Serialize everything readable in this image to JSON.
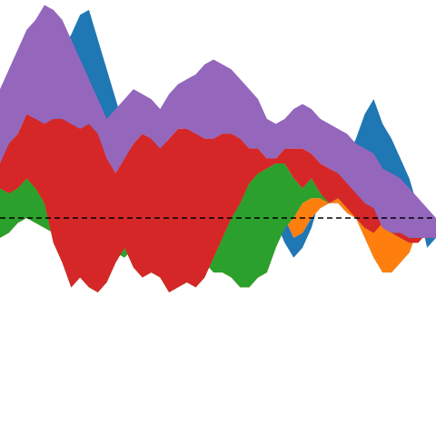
{
  "chart_data": {
    "type": "area",
    "stacked": true,
    "baseline": "centered",
    "grid": false,
    "legend": "none",
    "x": [
      0,
      1,
      2,
      3,
      4,
      5,
      6,
      7,
      8,
      9,
      10,
      11,
      12,
      13,
      14,
      15,
      16,
      17,
      18,
      19,
      20,
      21,
      22,
      23,
      24,
      25,
      26,
      27,
      28,
      29,
      30,
      31,
      32,
      33,
      34,
      35,
      36,
      37,
      38,
      39,
      40,
      41,
      42,
      43,
      44,
      45,
      46,
      47,
      48,
      49
    ],
    "reference_line": {
      "y": 0,
      "style": "dashed",
      "color": "#000000"
    },
    "series": [
      {
        "color": "#1f77b4",
        "lower": [
          115,
          95,
          70,
          80,
          110,
          150,
          165,
          170,
          185,
          205,
          210,
          180,
          150,
          120,
          90,
          55,
          60,
          100,
          95,
          70,
          30,
          60,
          70,
          80,
          60,
          55,
          40,
          25,
          20,
          10,
          0,
          -5,
          -25,
          -40,
          -30,
          -10,
          20,
          40,
          50,
          60,
          80,
          105,
          120,
          95,
          80,
          60,
          40,
          10,
          -30,
          -20
        ]
      },
      {
        "color": "#ff7f0e",
        "lower": [
          40,
          45,
          55,
          65,
          65,
          45,
          40,
          55,
          45,
          40,
          40,
          55,
          70,
          85,
          70,
          50,
          35,
          30,
          40,
          60,
          80,
          105,
          120,
          145,
          155,
          150,
          140,
          130,
          100,
          70,
          35,
          20,
          0,
          -20,
          -15,
          0,
          10,
          15,
          15,
          5,
          0,
          -20,
          -40,
          -55,
          -55,
          -45,
          -35,
          -10,
          -5,
          0
        ]
      },
      {
        "color": "#2ca02c",
        "lower": [
          -20,
          -15,
          -5,
          0,
          -5,
          -10,
          -15,
          -15,
          -15,
          -15,
          -15,
          -25,
          -35,
          -35,
          -40,
          -30,
          -20,
          -15,
          -15,
          -5,
          -5,
          -25,
          -30,
          -45,
          -55,
          -55,
          -60,
          -70,
          -70,
          -60,
          -55,
          -30,
          -10,
          0,
          15,
          20,
          20,
          15,
          25,
          25,
          15,
          10,
          0,
          -5,
          -5,
          0,
          0,
          5,
          0,
          0
        ]
      },
      {
        "color": "#d62728",
        "lower": [
          30,
          25,
          30,
          40,
          30,
          15,
          -25,
          -45,
          -70,
          -60,
          -70,
          -75,
          -65,
          -45,
          -30,
          -50,
          -60,
          -55,
          -60,
          -75,
          -70,
          -65,
          -70,
          -60,
          -40,
          -20,
          0,
          15,
          35,
          45,
          50,
          55,
          55,
          40,
          30,
          40,
          25,
          15,
          20,
          10,
          0,
          -10,
          -15,
          -5,
          -15,
          -20,
          -25,
          -25,
          -15,
          -10
        ]
      },
      {
        "color": "#9467bd",
        "lower": [
          55,
          75,
          85,
          105,
          100,
          95,
          100,
          100,
          95,
          90,
          95,
          85,
          60,
          45,
          60,
          75,
          85,
          80,
          70,
          80,
          90,
          90,
          85,
          80,
          80,
          85,
          85,
          80,
          70,
          70,
          60,
          60,
          70,
          70,
          70,
          65,
          55,
          50,
          45,
          35,
          25,
          15,
          10,
          -10,
          -15,
          -15,
          -20,
          -20,
          -20,
          -20
        ],
        "upper": [
          130,
          150,
          170,
          190,
          200,
          215,
          210,
          200,
          180,
          160,
          140,
          120,
          100,
          110,
          120,
          130,
          125,
          120,
          110,
          125,
          135,
          140,
          145,
          155,
          160,
          155,
          150,
          140,
          130,
          120,
          100,
          95,
          100,
          110,
          115,
          110,
          100,
          95,
          90,
          85,
          75,
          70,
          65,
          50,
          45,
          40,
          30,
          20,
          10,
          0
        ]
      }
    ],
    "ylim": [
      -220,
      220
    ]
  }
}
